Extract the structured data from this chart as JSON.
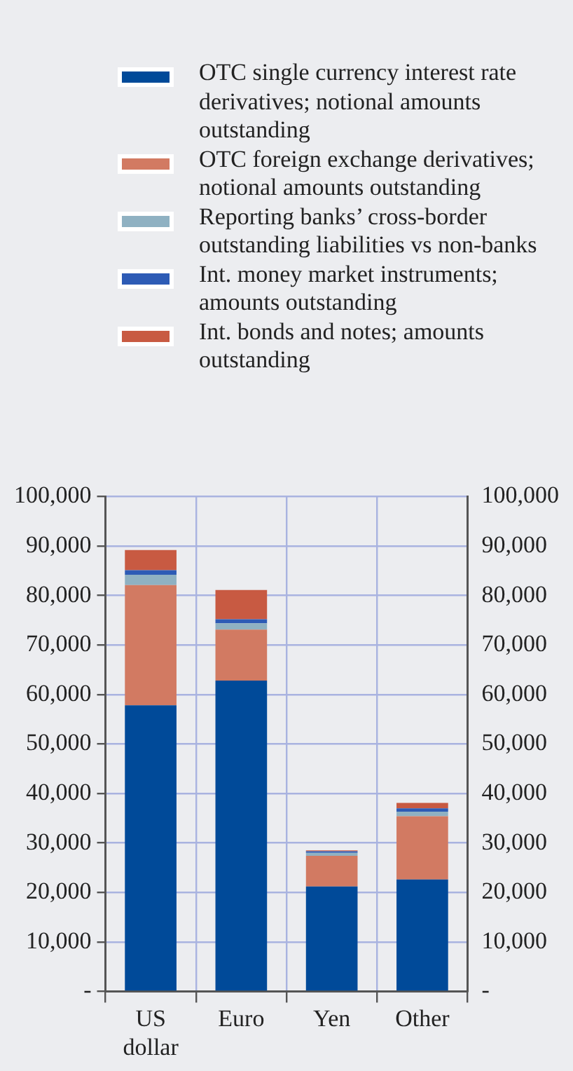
{
  "chart_data": {
    "type": "bar",
    "stacked": true,
    "categories": [
      "US dollar",
      "Euro",
      "Yen",
      "Other"
    ],
    "series": [
      {
        "name": "OTC single currency interest rate derivatives; notional amounts outstanding",
        "color": "#004a99",
        "values": [
          57800,
          62800,
          21200,
          22600
        ]
      },
      {
        "name": "OTC foreign exchange derivatives; notional amounts outstanding",
        "color": "#d27a62",
        "values": [
          24300,
          10300,
          6200,
          12800
        ]
      },
      {
        "name": "Reporting banks’ cross-border outstanding liabilities vs non-banks",
        "color": "#8fb1c2",
        "values": [
          2100,
          1300,
          600,
          900
        ]
      },
      {
        "name": "Int. money market instruments; amounts outstanding",
        "color": "#2d5bb5",
        "values": [
          900,
          800,
          300,
          700
        ]
      },
      {
        "name": "Int. bonds and notes; amounts outstanding",
        "color": "#c85a42",
        "values": [
          4100,
          5900,
          200,
          1100
        ]
      }
    ],
    "ylim": [
      0,
      100000
    ],
    "yticks": [
      {
        "value": 0,
        "label": "-"
      },
      {
        "value": 10000,
        "label": "10,000"
      },
      {
        "value": 20000,
        "label": "20,000"
      },
      {
        "value": 30000,
        "label": "30,000"
      },
      {
        "value": 40000,
        "label": "40,000"
      },
      {
        "value": 50000,
        "label": "50,000"
      },
      {
        "value": 60000,
        "label": "60,000"
      },
      {
        "value": 70000,
        "label": "70,000"
      },
      {
        "value": 80000,
        "label": "80,000"
      },
      {
        "value": 90000,
        "label": "90,000"
      },
      {
        "value": 100000,
        "label": "100,000"
      }
    ],
    "y2lim": [
      0,
      100000
    ],
    "y2ticks": [
      {
        "value": 0,
        "label": "-"
      },
      {
        "value": 10000,
        "label": "10,000"
      },
      {
        "value": 20000,
        "label": "20,000"
      },
      {
        "value": 30000,
        "label": "30,000"
      },
      {
        "value": 40000,
        "label": "40,000"
      },
      {
        "value": 50000,
        "label": "50,000"
      },
      {
        "value": 60000,
        "label": "60,000"
      },
      {
        "value": 70000,
        "label": "70,000"
      },
      {
        "value": 80000,
        "label": "80,000"
      },
      {
        "value": 90000,
        "label": "90,000"
      },
      {
        "value": 100000,
        "label": "100,000"
      }
    ],
    "grid": true,
    "legend": "top"
  }
}
